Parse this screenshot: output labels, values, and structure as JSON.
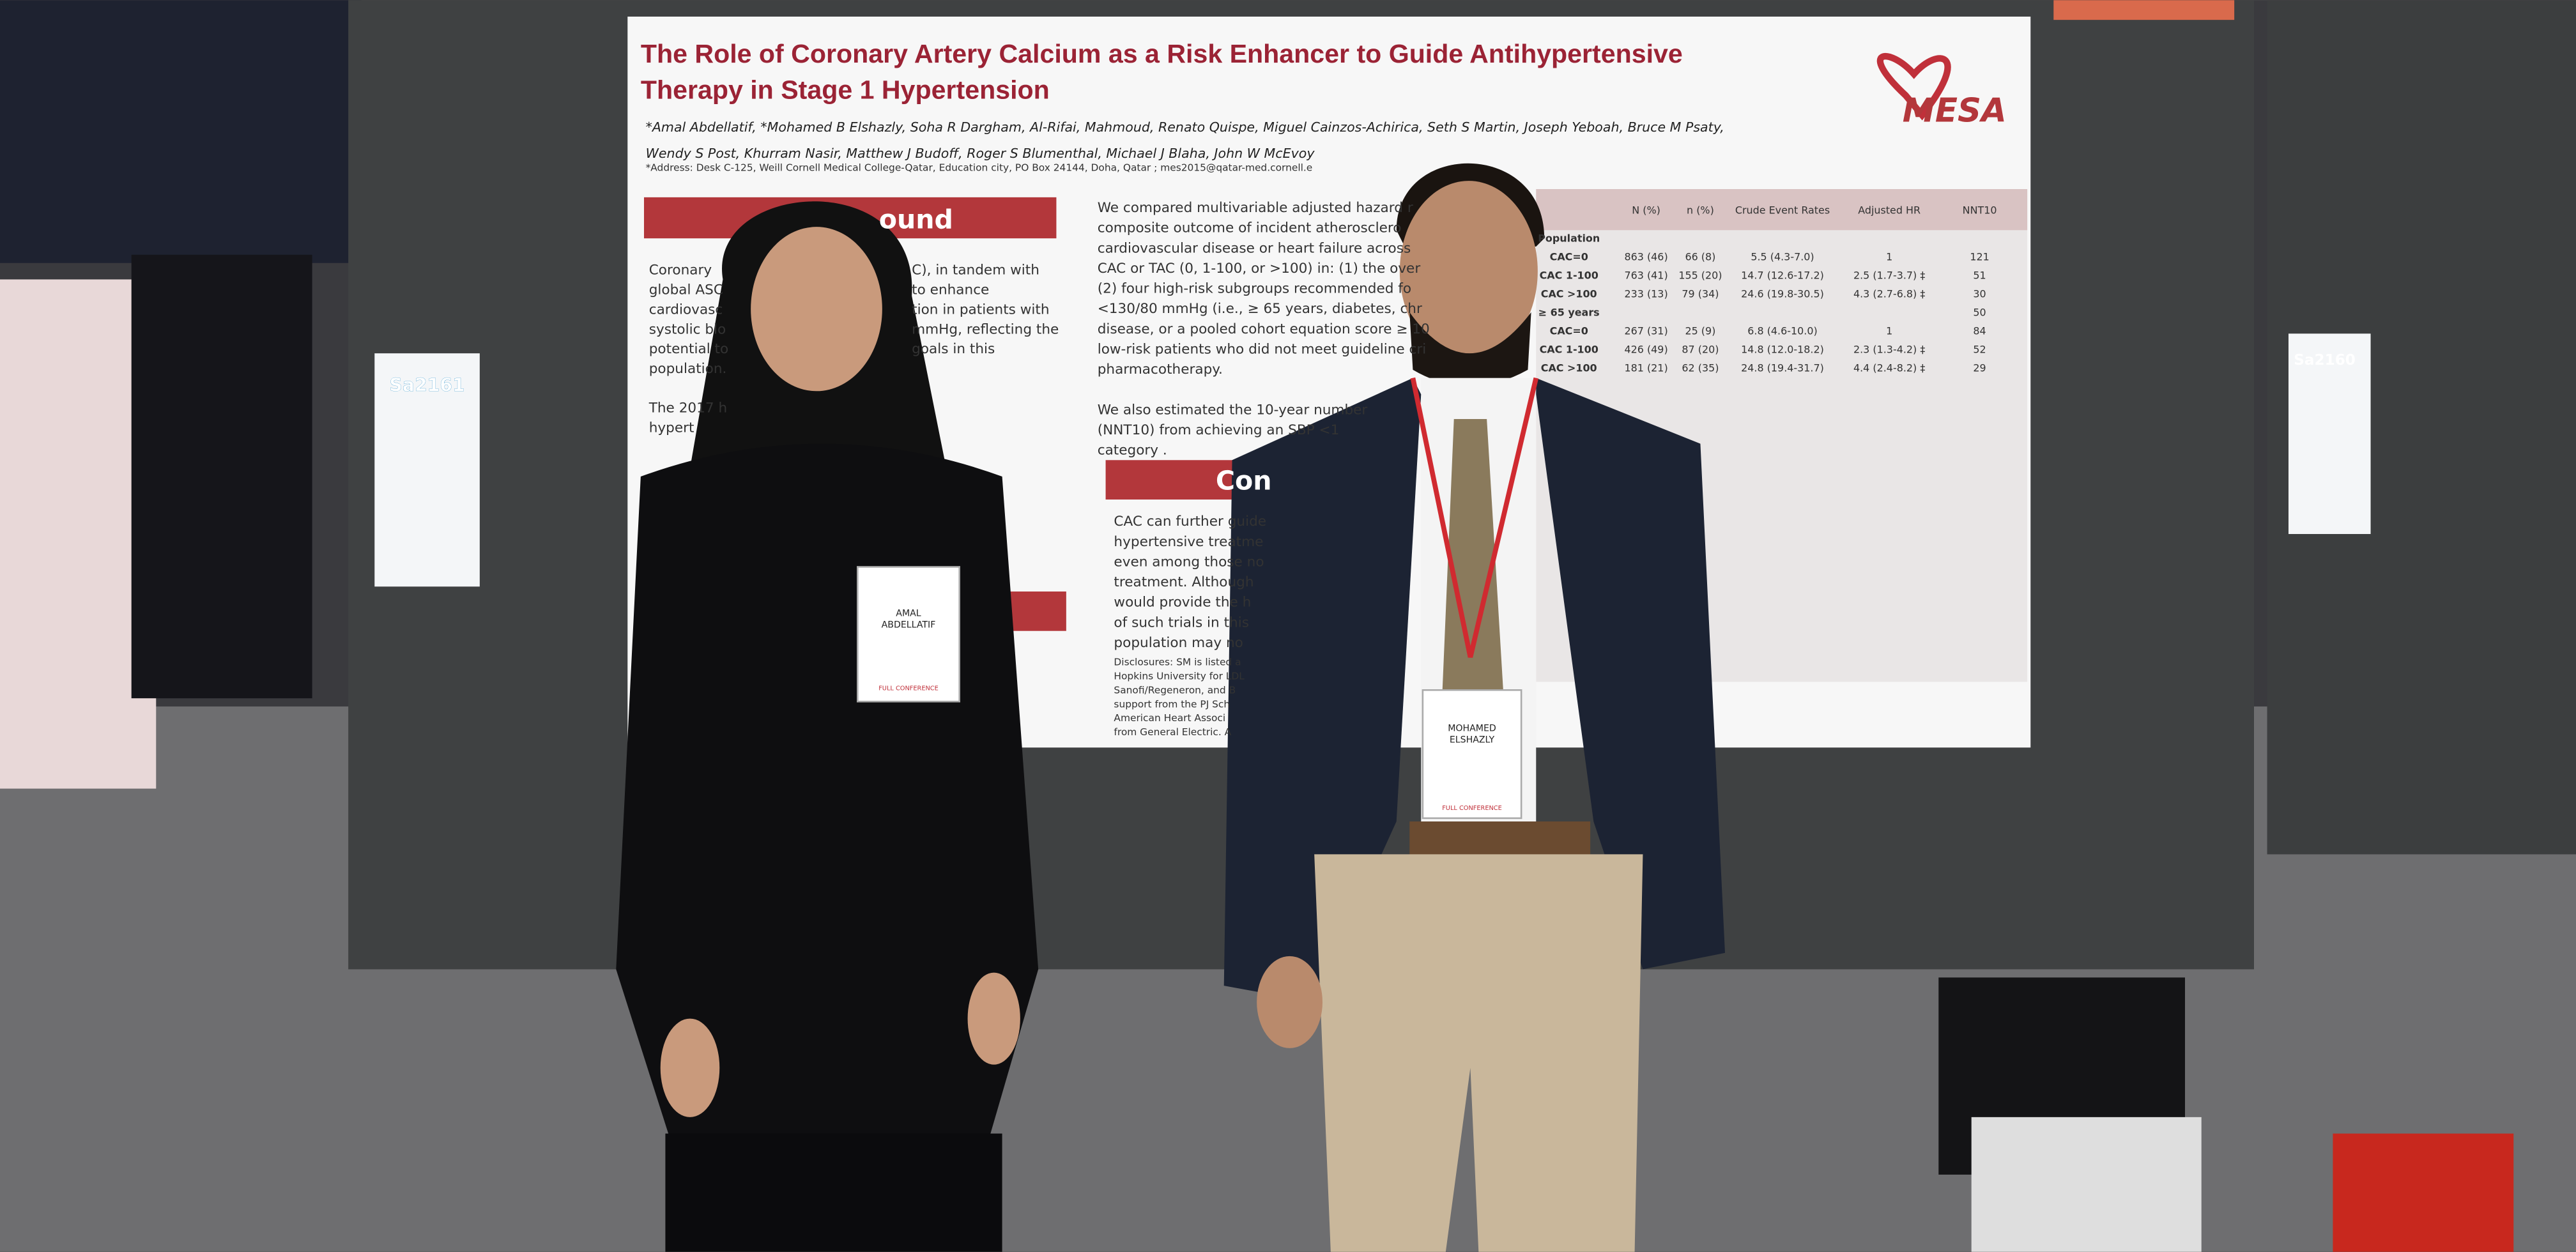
{
  "poster": {
    "title": [
      "The Role of Coronary Artery Calcium as a Risk Enhancer to Guide Antihypertensive",
      "Therapy in Stage 1 Hypertension"
    ],
    "authors": [
      "*Amal Abdellatif, *Mohamed B Elshazly, Soha R Dargham, Al-Rifai, Mahmoud, Renato Quispe, Miguel Cainzos-Achirica, Seth S Martin, Joseph Yeboah, Bruce M Psaty,",
      "Wendy S Post, Khurram Nasir, Matthew J Budoff, Roger S Blumenthal, Michael J Blaha, John W McEvoy"
    ],
    "address": "*Address: Desk C-125, Weill Cornell Medical College-Qatar, Education city, PO Box 24144, Doha, Qatar ; mes2015@qatar-med.cornell.e",
    "logo": "MESA",
    "background_heading": "ound",
    "background_left": [
      "Coronary",
      "global ASC",
      "cardiovasc",
      "systolic blo",
      "potential to",
      "population.",
      "",
      "The 2017 h",
      "hypert"
    ],
    "background_right": [
      "C), in tandem with",
      "to enhance",
      "tion in patients with",
      "mmHg, reflecting the",
      "goals in this"
    ],
    "methods": [
      "We compared multivariable adjusted hazard r",
      "composite outcome of incident atherosclero",
      "cardiovascular disease or heart failure across",
      "CAC or TAC (0, 1-100, or >100) in: (1) the over",
      "(2) four high-risk subgroups recommended fo",
      "<130/80 mmHg (i.e., ≥ 65 years, diabetes, chr",
      "disease, or a pooled cohort equation score ≥ 10",
      "low-risk patients who did not meet guideline cri",
      "pharmacotherapy.",
      "",
      "We also estimated the 10-year number",
      "(NNT10) from achieving an SBP <1",
      "category ."
    ],
    "conclusions_heading": "Con",
    "conclusions": [
      "CAC can further guide",
      "hypertensive treatme",
      "even among those no",
      "treatment. Although",
      "would provide the h",
      "of such trials in this",
      "population may no"
    ],
    "disclosures": [
      "Disclosures: SM is listed a",
      "Hopkins University for LDL",
      "Sanofi/Regeneron, and B",
      "support from the PJ Sch",
      "American Heart Associ",
      "from General Electric. A"
    ],
    "table": {
      "header": [
        "N (%)",
        "n (%)",
        "Crude Event Rates",
        "Adjusted HR",
        "NNT10"
      ],
      "rows": [
        [
          "Population",
          "",
          "",
          "",
          "",
          ""
        ],
        [
          "CAC=0",
          "863 (46)",
          "66 (8)",
          "5.5 (4.3-7.0)",
          "1",
          "121"
        ],
        [
          "CAC 1-100",
          "763 (41)",
          "155 (20)",
          "14.7 (12.6-17.2)",
          "2.5 (1.7-3.7) ‡",
          "51"
        ],
        [
          "CAC >100",
          "233 (13)",
          "79 (34)",
          "24.6 (19.8-30.5)",
          "4.3 (2.7-6.8) ‡",
          "30"
        ],
        [
          "≥ 65 years",
          "",
          "",
          "",
          "",
          "50"
        ],
        [
          "CAC=0",
          "267 (31)",
          "25 (9)",
          "6.8 (4.6-10.0)",
          "1",
          "84"
        ],
        [
          "CAC 1-100",
          "426 (49)",
          "87 (20)",
          "14.8 (12.0-18.2)",
          "2.3 (1.3-4.2) ‡",
          "52"
        ],
        [
          "CAC >100",
          "181 (21)",
          "62 (35)",
          "24.8 (19.4-31.7)",
          "4.4 (2.4-8.2) ‡",
          "29"
        ]
      ]
    }
  },
  "signs": [
    "Sa2161",
    "Sa2160"
  ],
  "badges": [
    {
      "name": [
        "AMAL",
        "ABDELLATIF"
      ],
      "tag": "FULL CONFERENCE"
    },
    {
      "name": [
        "MOHAMED",
        "ELSHAZLY"
      ],
      "tag": "FULL CONFERENCE"
    }
  ]
}
